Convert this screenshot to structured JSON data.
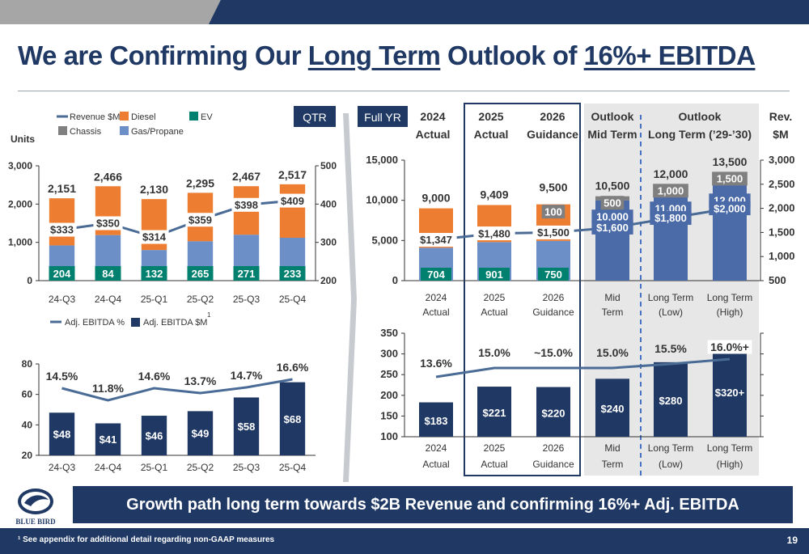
{
  "title": {
    "pre": "We are Confirming Our ",
    "u1": "Long Term",
    "mid": " Outlook of ",
    "u2": "16%+ EBITDA"
  },
  "banner": "Growth path long term towards $2B Revenue and confirming 16%+ Adj. EBITDA",
  "footnote": "¹ See appendix for additional detail regarding non-GAAP measures",
  "page_number": "19",
  "logo_text": "BLUE BIRD",
  "colors": {
    "navy": "#1f3864",
    "diesel": "#ed7d31",
    "ev": "#00806e",
    "chassis": "#808080",
    "gas": "#6d8fc8",
    "line": "#4a6b96",
    "panel": "#e7e7e7",
    "gray": "#a6a6a6"
  },
  "qtr_label": "QTR",
  "fy_label": "Full YR",
  "chart_data": [
    {
      "type": "bar",
      "id": "qtr-units",
      "ylabel": "Units",
      "legend": [
        "Revenue $M",
        "Diesel",
        "EV",
        "Chassis",
        "Gas/Propane"
      ],
      "categories": [
        "24-Q3",
        "24-Q4",
        "25-Q1",
        "25-Q2",
        "25-Q3",
        "25-Q4"
      ],
      "y_ticks": [
        "3,000",
        "2,000",
        "1,000",
        "0"
      ],
      "y2_ticks": [
        "500",
        "400",
        "300",
        "200"
      ],
      "ylim": [
        0,
        3000
      ],
      "y2lim": [
        200,
        500
      ],
      "totals": [
        2151,
        2466,
        2130,
        2295,
        2467,
        2517
      ],
      "total_labels": [
        "2,151",
        "2,466",
        "2,130",
        "2,295",
        "2,467",
        "2,517"
      ],
      "ev": [
        204,
        84,
        132,
        265,
        271,
        233
      ],
      "ev_labels": [
        "204",
        "84",
        "132",
        "265",
        "271",
        "233"
      ],
      "gas": [
        920,
        1190,
        800,
        1030,
        1200,
        1120
      ],
      "revenue": [
        333,
        350,
        314,
        359,
        398,
        409
      ],
      "revenue_labels": [
        "$333",
        "$350",
        "$314",
        "$359",
        "$398",
        "$409"
      ]
    },
    {
      "type": "bar",
      "id": "qtr-ebitda",
      "legend": [
        "Adj. EBITDA %",
        "Adj. EBITDA $M"
      ],
      "legend_sup": "1",
      "categories": [
        "24-Q3",
        "24-Q4",
        "25-Q1",
        "25-Q2",
        "25-Q3",
        "25-Q4"
      ],
      "y_ticks": [
        "80",
        "60",
        "40",
        "20"
      ],
      "ylim": [
        20,
        80
      ],
      "values": [
        48,
        41,
        46,
        49,
        58,
        68
      ],
      "value_labels": [
        "$48",
        "$41",
        "$46",
        "$49",
        "$58",
        "$68"
      ],
      "pct": [
        14.5,
        11.8,
        14.6,
        13.7,
        14.7,
        16.6
      ],
      "pct_labels": [
        "14.5%",
        "11.8%",
        "14.6%",
        "13.7%",
        "14.7%",
        "16.6%"
      ]
    },
    {
      "type": "bar",
      "id": "fy-units",
      "headers": [
        [
          "2024",
          "Actual"
        ],
        [
          "2025",
          "Actual"
        ],
        [
          "2026",
          "Guidance"
        ],
        [
          "Outlook",
          "Mid Term"
        ],
        [
          "Outlook",
          "Long Term (’29-’30)"
        ],
        [
          "Rev.",
          "$M"
        ]
      ],
      "categories": [
        [
          "2024",
          "Actual"
        ],
        [
          "2025",
          "Actual"
        ],
        [
          "2026",
          "Guidance"
        ],
        [
          "Mid",
          "Term"
        ],
        [
          "Long Term",
          "(Low)"
        ],
        [
          "Long Term",
          "(High)"
        ]
      ],
      "y_ticks": [
        "15,000",
        "10,000",
        "5,000",
        "0"
      ],
      "y2_ticks": [
        "3,000",
        "2,500",
        "2,000",
        "1,500",
        "1,000",
        "500"
      ],
      "ylim": [
        0,
        15000
      ],
      "y2lim": [
        500,
        3000
      ],
      "totals": [
        9000,
        9409,
        9500,
        10500,
        12000,
        13500
      ],
      "total_labels": [
        "9,000",
        "9,409",
        "9,500",
        "10,500",
        "12,000",
        "13,500"
      ],
      "ev": [
        704,
        901,
        750,
        null,
        null,
        null
      ],
      "ev_labels": [
        "704",
        "901",
        "750",
        "",
        "",
        ""
      ],
      "gas": [
        4100,
        4800,
        4950,
        null,
        null,
        null
      ],
      "outlook_base": [
        null,
        null,
        null,
        10000,
        11000,
        12000
      ],
      "outlook_base_labels": [
        "",
        "",
        "",
        "10,000",
        "11,000",
        "12,000"
      ],
      "outlook_extra": [
        null,
        null,
        100,
        500,
        1000,
        1500
      ],
      "outlook_extra_labels": [
        "",
        "",
        "100",
        "500",
        "1,000",
        "1,500"
      ],
      "revenue": [
        1347,
        1480,
        1500,
        1600,
        1800,
        2000
      ],
      "revenue_labels": [
        "$1,347",
        "$1,480",
        "$1,500",
        "$1,600",
        "$1,800",
        "$2,000"
      ]
    },
    {
      "type": "bar",
      "id": "fy-ebitda",
      "categories": [
        [
          "2024",
          "Actual"
        ],
        [
          "2025",
          "Actual"
        ],
        [
          "2026",
          "Guidance"
        ],
        [
          "Mid",
          "Term"
        ],
        [
          "Long Term",
          "(Low)"
        ],
        [
          "Long Term",
          "(High)"
        ]
      ],
      "y_ticks": [
        "350",
        "300",
        "250",
        "200",
        "150",
        "100"
      ],
      "ylim": [
        100,
        350
      ],
      "values": [
        183,
        221,
        220,
        240,
        280,
        320
      ],
      "value_labels": [
        "$183",
        "$221",
        "$220",
        "$240",
        "$280",
        "$320+"
      ],
      "pct": [
        13.6,
        15.0,
        15.0,
        15.0,
        15.5,
        16.0
      ],
      "pct_labels": [
        "13.6%",
        "15.0%",
        "~15.0%",
        "15.0%",
        "15.5%",
        "16.0%+"
      ]
    }
  ]
}
